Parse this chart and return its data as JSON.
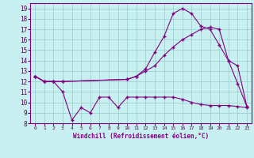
{
  "background_color": "#c8f0f0",
  "grid_color": "#a0d0d0",
  "line_color": "#800080",
  "xlabel": "Windchill (Refroidissement éolien,°C)",
  "xlim": [
    -0.5,
    23.5
  ],
  "ylim": [
    8,
    19.5
  ],
  "yticks": [
    8,
    9,
    10,
    11,
    12,
    13,
    14,
    15,
    16,
    17,
    18,
    19
  ],
  "xticks": [
    0,
    1,
    2,
    3,
    4,
    5,
    6,
    7,
    8,
    9,
    10,
    11,
    12,
    13,
    14,
    15,
    16,
    17,
    18,
    19,
    20,
    21,
    22,
    23
  ],
  "line1_x": [
    0,
    1,
    2,
    3,
    10,
    11,
    12,
    13,
    14,
    15,
    16,
    17,
    18,
    19,
    20,
    21,
    22,
    23
  ],
  "line1_y": [
    12.5,
    12.0,
    12.0,
    12.0,
    12.2,
    12.5,
    13.2,
    14.8,
    16.3,
    18.5,
    19.0,
    18.5,
    17.3,
    17.0,
    15.5,
    14.0,
    13.5,
    9.6
  ],
  "line2_x": [
    0,
    1,
    2,
    3,
    10,
    11,
    12,
    13,
    14,
    15,
    16,
    17,
    18,
    19,
    20,
    21,
    22,
    23
  ],
  "line2_y": [
    12.5,
    12.0,
    12.0,
    12.0,
    12.2,
    12.5,
    13.0,
    13.5,
    14.5,
    15.3,
    16.0,
    16.5,
    17.0,
    17.2,
    17.0,
    14.0,
    11.8,
    9.6
  ],
  "line3_x": [
    0,
    1,
    2,
    3,
    4,
    5,
    6,
    7,
    8,
    9,
    10,
    11,
    12,
    13,
    14,
    15,
    16,
    17,
    18,
    19,
    20,
    21,
    22,
    23
  ],
  "line3_y": [
    12.5,
    12.0,
    12.0,
    11.0,
    8.3,
    9.5,
    9.0,
    10.5,
    10.5,
    9.5,
    10.5,
    10.5,
    10.5,
    10.5,
    10.5,
    10.5,
    10.3,
    10.0,
    9.8,
    9.7,
    9.7,
    9.7,
    9.6,
    9.5
  ]
}
